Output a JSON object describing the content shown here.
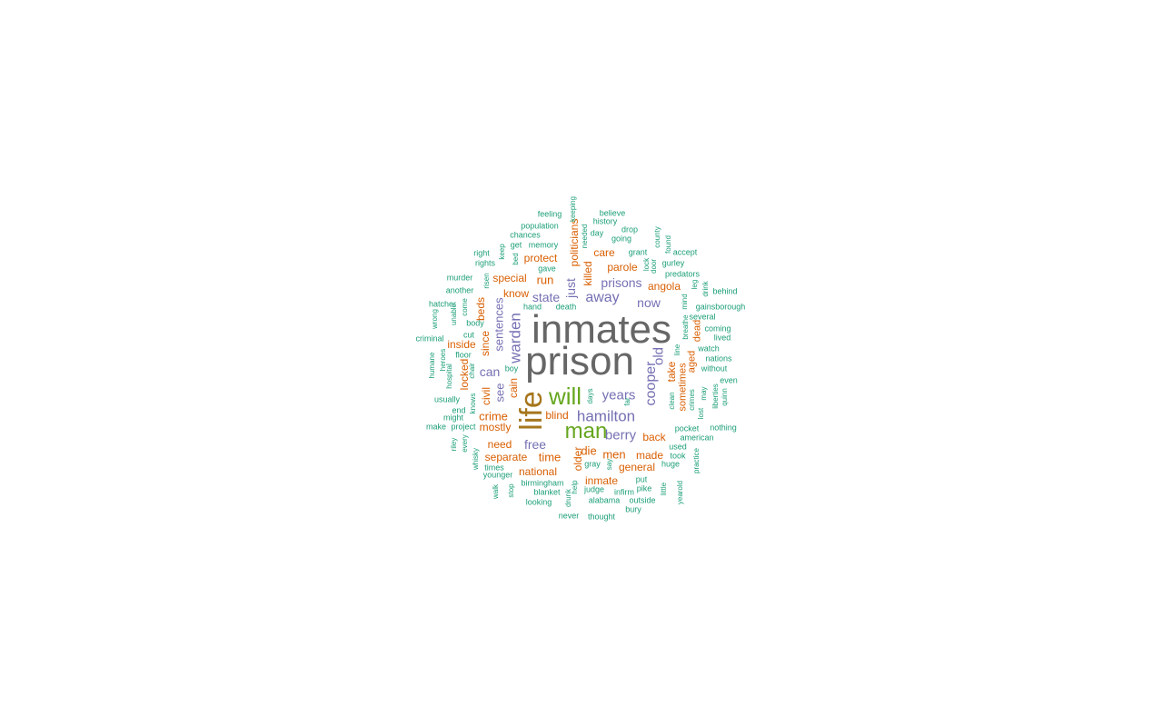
{
  "colors": {
    "c1": "#666666",
    "c2": "#a6761d",
    "c3": "#66a61e",
    "c4": "#7570b3",
    "c5": "#d95f02",
    "c6": "#1b9e77"
  },
  "words": [
    {
      "text": "inmates",
      "color": "c1"
    },
    {
      "text": "prison",
      "color": "c1"
    },
    {
      "text": "life",
      "color": "c2"
    },
    {
      "text": "will",
      "color": "c3"
    },
    {
      "text": "man",
      "color": "c3"
    },
    {
      "text": "hamilton",
      "color": "c4"
    },
    {
      "text": "years",
      "color": "c4"
    },
    {
      "text": "berry",
      "color": "c4"
    },
    {
      "text": "cooper",
      "color": "c4"
    },
    {
      "text": "warden",
      "color": "c4"
    },
    {
      "text": "away",
      "color": "c4"
    },
    {
      "text": "prisons",
      "color": "c4"
    },
    {
      "text": "state",
      "color": "c4"
    },
    {
      "text": "now",
      "color": "c4"
    },
    {
      "text": "old",
      "color": "c4"
    },
    {
      "text": "can",
      "color": "c4"
    },
    {
      "text": "see",
      "color": "c4"
    },
    {
      "text": "free",
      "color": "c4"
    },
    {
      "text": "sentences",
      "color": "c4"
    },
    {
      "text": "just",
      "color": "c4"
    },
    {
      "text": "crime",
      "color": "c5"
    },
    {
      "text": "mostly",
      "color": "c5"
    },
    {
      "text": "men",
      "color": "c5"
    },
    {
      "text": "die",
      "color": "c5"
    },
    {
      "text": "time",
      "color": "c5"
    },
    {
      "text": "back",
      "color": "c5"
    },
    {
      "text": "made",
      "color": "c5"
    },
    {
      "text": "general",
      "color": "c5"
    },
    {
      "text": "need",
      "color": "c5"
    },
    {
      "text": "separate",
      "color": "c5"
    },
    {
      "text": "national",
      "color": "c5"
    },
    {
      "text": "inmate",
      "color": "c5"
    },
    {
      "text": "older",
      "color": "c5"
    },
    {
      "text": "blind",
      "color": "c5"
    },
    {
      "text": "cain",
      "color": "c5"
    },
    {
      "text": "civil",
      "color": "c5"
    },
    {
      "text": "locked",
      "color": "c5"
    },
    {
      "text": "inside",
      "color": "c5"
    },
    {
      "text": "since",
      "color": "c5"
    },
    {
      "text": "beds",
      "color": "c5"
    },
    {
      "text": "know",
      "color": "c5"
    },
    {
      "text": "special",
      "color": "c5"
    },
    {
      "text": "run",
      "color": "c5"
    },
    {
      "text": "protect",
      "color": "c5"
    },
    {
      "text": "care",
      "color": "c5"
    },
    {
      "text": "parole",
      "color": "c5"
    },
    {
      "text": "angola",
      "color": "c5"
    },
    {
      "text": "killed",
      "color": "c5"
    },
    {
      "text": "politicians",
      "color": "c5"
    },
    {
      "text": "take",
      "color": "c5"
    },
    {
      "text": "aged",
      "color": "c5"
    },
    {
      "text": "sometimes",
      "color": "c5"
    },
    {
      "text": "dead",
      "color": "c5"
    },
    {
      "text": "feeling",
      "color": "c6"
    },
    {
      "text": "keeping",
      "color": "c6"
    },
    {
      "text": "believe",
      "color": "c6"
    },
    {
      "text": "history",
      "color": "c6"
    },
    {
      "text": "population",
      "color": "c6"
    },
    {
      "text": "chances",
      "color": "c6"
    },
    {
      "text": "needed",
      "color": "c6"
    },
    {
      "text": "day",
      "color": "c6"
    },
    {
      "text": "drop",
      "color": "c6"
    },
    {
      "text": "going",
      "color": "c6"
    },
    {
      "text": "county",
      "color": "c6"
    },
    {
      "text": "found",
      "color": "c6"
    },
    {
      "text": "get",
      "color": "c6"
    },
    {
      "text": "memory",
      "color": "c6"
    },
    {
      "text": "right",
      "color": "c6"
    },
    {
      "text": "keep",
      "color": "c6"
    },
    {
      "text": "bed",
      "color": "c6"
    },
    {
      "text": "rights",
      "color": "c6"
    },
    {
      "text": "gave",
      "color": "c6"
    },
    {
      "text": "grant",
      "color": "c6"
    },
    {
      "text": "lock",
      "color": "c6"
    },
    {
      "text": "door",
      "color": "c6"
    },
    {
      "text": "accept",
      "color": "c6"
    },
    {
      "text": "gurley",
      "color": "c6"
    },
    {
      "text": "predators",
      "color": "c6"
    },
    {
      "text": "murder",
      "color": "c6"
    },
    {
      "text": "risen",
      "color": "c6"
    },
    {
      "text": "another",
      "color": "c6"
    },
    {
      "text": "leg",
      "color": "c6"
    },
    {
      "text": "drink",
      "color": "c6"
    },
    {
      "text": "behind",
      "color": "c6"
    },
    {
      "text": "hatcher",
      "color": "c6"
    },
    {
      "text": "come",
      "color": "c6"
    },
    {
      "text": "hand",
      "color": "c6"
    },
    {
      "text": "death",
      "color": "c6"
    },
    {
      "text": "mind",
      "color": "c6"
    },
    {
      "text": "gainsborough",
      "color": "c6"
    },
    {
      "text": "wrong",
      "color": "c6"
    },
    {
      "text": "unable",
      "color": "c6"
    },
    {
      "text": "several",
      "color": "c6"
    },
    {
      "text": "body",
      "color": "c6"
    },
    {
      "text": "breathe",
      "color": "c6"
    },
    {
      "text": "coming",
      "color": "c6"
    },
    {
      "text": "criminal",
      "color": "c6"
    },
    {
      "text": "cut",
      "color": "c6"
    },
    {
      "text": "lived",
      "color": "c6"
    },
    {
      "text": "heroes",
      "color": "c6"
    },
    {
      "text": "line",
      "color": "c6"
    },
    {
      "text": "watch",
      "color": "c6"
    },
    {
      "text": "humane",
      "color": "c6"
    },
    {
      "text": "chair",
      "color": "c6"
    },
    {
      "text": "floor",
      "color": "c6"
    },
    {
      "text": "nations",
      "color": "c6"
    },
    {
      "text": "hospital",
      "color": "c6"
    },
    {
      "text": "boy",
      "color": "c6"
    },
    {
      "text": "without",
      "color": "c6"
    },
    {
      "text": "knows",
      "color": "c6"
    },
    {
      "text": "even",
      "color": "c6"
    },
    {
      "text": "usually",
      "color": "c6"
    },
    {
      "text": "clean",
      "color": "c6"
    },
    {
      "text": "crimes",
      "color": "c6"
    },
    {
      "text": "may",
      "color": "c6"
    },
    {
      "text": "liberties",
      "color": "c6"
    },
    {
      "text": "quinn",
      "color": "c6"
    },
    {
      "text": "end",
      "color": "c6"
    },
    {
      "text": "days",
      "color": "c6"
    },
    {
      "text": "lost",
      "color": "c6"
    },
    {
      "text": "might",
      "color": "c6"
    },
    {
      "text": "far",
      "color": "c6"
    },
    {
      "text": "make",
      "color": "c6"
    },
    {
      "text": "project",
      "color": "c6"
    },
    {
      "text": "pocket",
      "color": "c6"
    },
    {
      "text": "nothing",
      "color": "c6"
    },
    {
      "text": "american",
      "color": "c6"
    },
    {
      "text": "riley",
      "color": "c6"
    },
    {
      "text": "every",
      "color": "c6"
    },
    {
      "text": "used",
      "color": "c6"
    },
    {
      "text": "took",
      "color": "c6"
    },
    {
      "text": "whisky",
      "color": "c6"
    },
    {
      "text": "gray",
      "color": "c6"
    },
    {
      "text": "say",
      "color": "c6"
    },
    {
      "text": "huge",
      "color": "c6"
    },
    {
      "text": "practice",
      "color": "c6"
    },
    {
      "text": "times",
      "color": "c6"
    },
    {
      "text": "younger",
      "color": "c6"
    },
    {
      "text": "put",
      "color": "c6"
    },
    {
      "text": "birmingham",
      "color": "c6"
    },
    {
      "text": "help",
      "color": "c6"
    },
    {
      "text": "judge",
      "color": "c6"
    },
    {
      "text": "infirm",
      "color": "c6"
    },
    {
      "text": "pike",
      "color": "c6"
    },
    {
      "text": "little",
      "color": "c6"
    },
    {
      "text": "walk",
      "color": "c6"
    },
    {
      "text": "stop",
      "color": "c6"
    },
    {
      "text": "blanket",
      "color": "c6"
    },
    {
      "text": "drunk",
      "color": "c6"
    },
    {
      "text": "alabama",
      "color": "c6"
    },
    {
      "text": "outside",
      "color": "c6"
    },
    {
      "text": "yearold",
      "color": "c6"
    },
    {
      "text": "looking",
      "color": "c6"
    },
    {
      "text": "bury",
      "color": "c6"
    },
    {
      "text": "never",
      "color": "c6"
    },
    {
      "text": "thought",
      "color": "c6"
    }
  ]
}
